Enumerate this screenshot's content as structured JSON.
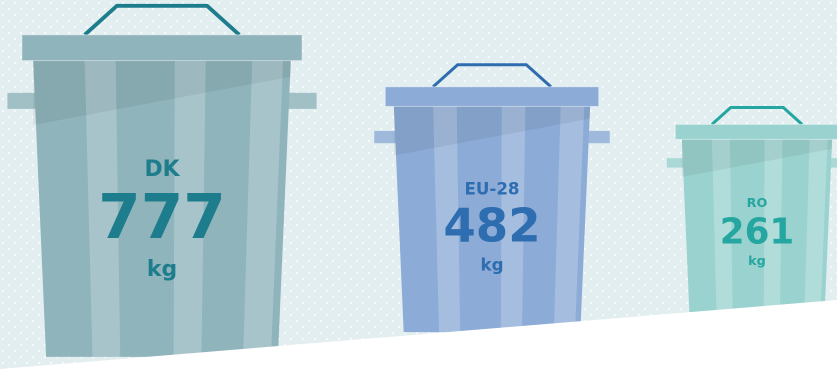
{
  "chart_data": {
    "type": "pictogram",
    "categories": [
      "DK",
      "EU-28",
      "RO"
    ],
    "values": [
      777,
      482,
      261
    ],
    "unit": "kg",
    "colors": [
      "#8fb4bc",
      "#8cabd6",
      "#9ad2cf"
    ],
    "label_colors": [
      "#1d7d8c",
      "#2e6db0",
      "#25a6a0"
    ]
  }
}
